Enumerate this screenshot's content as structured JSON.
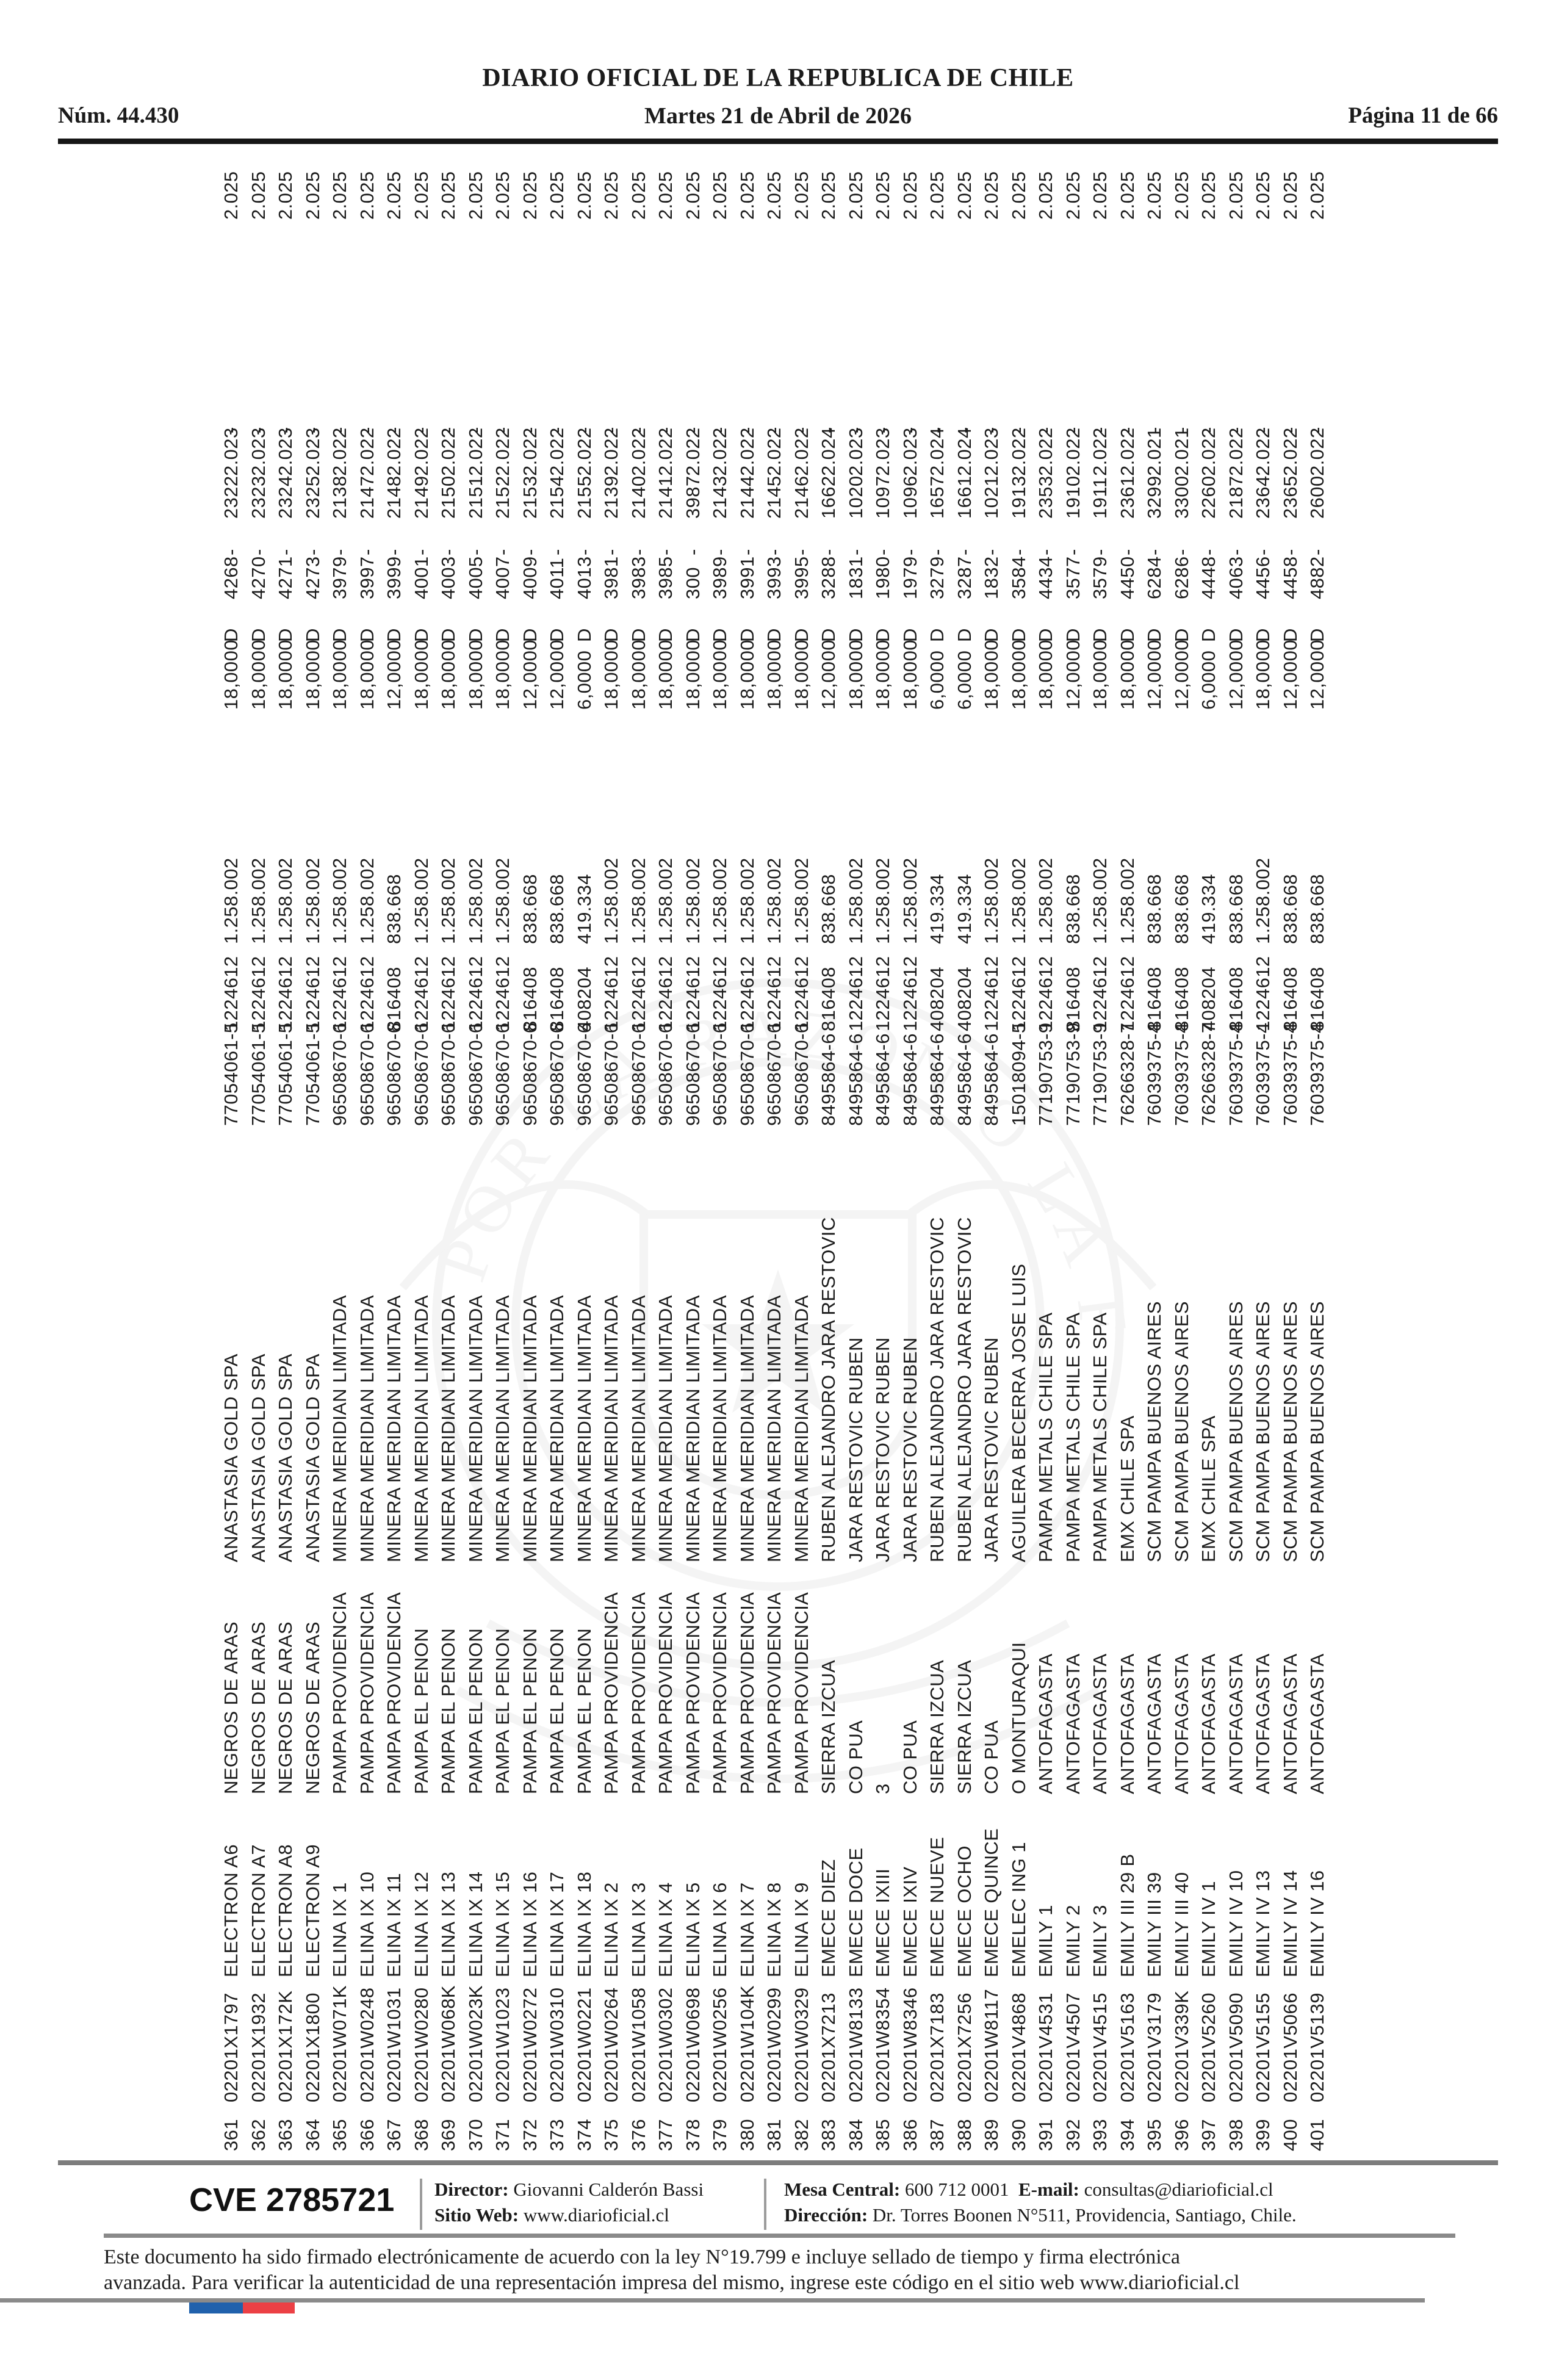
{
  "header": {
    "issue": "Núm. 44.430",
    "title": "DIARIO OFICIAL DE LA REPUBLICA DE CHILE",
    "date": "Martes 21 de Abril de 2026",
    "page": "Página 11 de 66"
  },
  "table": {
    "columns": [
      "numero",
      "rol",
      "nombre",
      "ubicacion",
      "titular",
      "rut",
      "patente",
      "valor",
      "superficie",
      "estado",
      "fojas",
      "dash1",
      "numero2",
      "anio",
      "dash2",
      "anio2"
    ],
    "rows": [
      [
        "361",
        "02201X1797",
        "ELECTRON A6",
        "NEGROS DE ARAS",
        "ANASTASIA GOLD SPA",
        "77054061-5",
        "1224612",
        "1.258.002",
        "18,0000",
        "D",
        "4268",
        "-",
        "2322",
        "2.023",
        "-",
        "2.025"
      ],
      [
        "362",
        "02201X1932",
        "ELECTRON A7",
        "NEGROS DE ARAS",
        "ANASTASIA GOLD SPA",
        "77054061-5",
        "1224612",
        "1.258.002",
        "18,0000",
        "D",
        "4270",
        "-",
        "2323",
        "2.023",
        "-",
        "2.025"
      ],
      [
        "363",
        "02201X172K",
        "ELECTRON A8",
        "NEGROS DE ARAS",
        "ANASTASIA GOLD SPA",
        "77054061-5",
        "1224612",
        "1.258.002",
        "18,0000",
        "D",
        "4271",
        "-",
        "2324",
        "2.023",
        "-",
        "2.025"
      ],
      [
        "364",
        "02201X1800",
        "ELECTRON A9",
        "NEGROS DE ARAS",
        "ANASTASIA GOLD SPA",
        "77054061-5",
        "1224612",
        "1.258.002",
        "18,0000",
        "D",
        "4273",
        "-",
        "2325",
        "2.023",
        "-",
        "2.025"
      ],
      [
        "365",
        "02201W071K",
        "ELINA IX 1",
        "PAMPA PROVIDENCIA",
        "MINERA MERIDIAN LIMITADA",
        "96508670-6",
        "1224612",
        "1.258.002",
        "18,0000",
        "D",
        "3979",
        "-",
        "2138",
        "2.022",
        "-",
        "2.025"
      ],
      [
        "366",
        "02201W0248",
        "ELINA IX 10",
        "PAMPA PROVIDENCIA",
        "MINERA MERIDIAN LIMITADA",
        "96508670-6",
        "1224612",
        "1.258.002",
        "18,0000",
        "D",
        "3997",
        "-",
        "2147",
        "2.022",
        "-",
        "2.025"
      ],
      [
        "367",
        "02201W1031",
        "ELINA IX 11",
        "PAMPA PROVIDENCIA",
        "MINERA MERIDIAN LIMITADA",
        "96508670-6",
        "816408",
        "838.668",
        "12,0000",
        "D",
        "3999",
        "-",
        "2148",
        "2.022",
        "-",
        "2.025"
      ],
      [
        "368",
        "02201W0280",
        "ELINA IX 12",
        "PAMPA EL PENON",
        "MINERA MERIDIAN LIMITADA",
        "96508670-6",
        "1224612",
        "1.258.002",
        "18,0000",
        "D",
        "4001",
        "-",
        "2149",
        "2.022",
        "-",
        "2.025"
      ],
      [
        "369",
        "02201W068K",
        "ELINA IX 13",
        "PAMPA EL PENON",
        "MINERA MERIDIAN LIMITADA",
        "96508670-6",
        "1224612",
        "1.258.002",
        "18,0000",
        "D",
        "4003",
        "-",
        "2150",
        "2.022",
        "-",
        "2.025"
      ],
      [
        "370",
        "02201W023K",
        "ELINA IX 14",
        "PAMPA EL PENON",
        "MINERA MERIDIAN LIMITADA",
        "96508670-6",
        "1224612",
        "1.258.002",
        "18,0000",
        "D",
        "4005",
        "-",
        "2151",
        "2.022",
        "-",
        "2.025"
      ],
      [
        "371",
        "02201W1023",
        "ELINA IX 15",
        "PAMPA EL PENON",
        "MINERA MERIDIAN LIMITADA",
        "96508670-6",
        "1224612",
        "1.258.002",
        "18,0000",
        "D",
        "4007",
        "-",
        "2152",
        "2.022",
        "-",
        "2.025"
      ],
      [
        "372",
        "02201W0272",
        "ELINA IX 16",
        "PAMPA EL PENON",
        "MINERA MERIDIAN LIMITADA",
        "96508670-6",
        "816408",
        "838.668",
        "12,0000",
        "D",
        "4009",
        "-",
        "2153",
        "2.022",
        "-",
        "2.025"
      ],
      [
        "373",
        "02201W0310",
        "ELINA IX 17",
        "PAMPA EL PENON",
        "MINERA MERIDIAN LIMITADA",
        "96508670-6",
        "816408",
        "838.668",
        "12,0000",
        "D",
        "4011",
        "-",
        "2154",
        "2.022",
        "-",
        "2.025"
      ],
      [
        "374",
        "02201W0221",
        "ELINA IX 18",
        "PAMPA EL PENON",
        "MINERA MERIDIAN LIMITADA",
        "96508670-6",
        "408204",
        "419.334",
        "6,0000",
        "D",
        "4013",
        "-",
        "2155",
        "2.022",
        "-",
        "2.025"
      ],
      [
        "375",
        "02201W0264",
        "ELINA IX 2",
        "PAMPA PROVIDENCIA",
        "MINERA MERIDIAN LIMITADA",
        "96508670-6",
        "1224612",
        "1.258.002",
        "18,0000",
        "D",
        "3981",
        "-",
        "2139",
        "2.022",
        "-",
        "2.025"
      ],
      [
        "376",
        "02201W1058",
        "ELINA IX 3",
        "PAMPA PROVIDENCIA",
        "MINERA MERIDIAN LIMITADA",
        "96508670-6",
        "1224612",
        "1.258.002",
        "18,0000",
        "D",
        "3983",
        "-",
        "2140",
        "2.022",
        "-",
        "2.025"
      ],
      [
        "377",
        "02201W0302",
        "ELINA IX 4",
        "PAMPA PROVIDENCIA",
        "MINERA MERIDIAN LIMITADA",
        "96508670-6",
        "1224612",
        "1.258.002",
        "18,0000",
        "D",
        "3985",
        "-",
        "2141",
        "2.022",
        "-",
        "2.025"
      ],
      [
        "378",
        "02201W0698",
        "ELINA IX 5",
        "PAMPA PROVIDENCIA",
        "MINERA MERIDIAN LIMITADA",
        "96508670-6",
        "1224612",
        "1.258.002",
        "18,0000",
        "D",
        "300",
        "-",
        "3987",
        "2.022",
        "-",
        "2.025"
      ],
      [
        "379",
        "02201W0256",
        "ELINA IX 6",
        "PAMPA PROVIDENCIA",
        "MINERA MERIDIAN LIMITADA",
        "96508670-6",
        "1224612",
        "1.258.002",
        "18,0000",
        "D",
        "3989",
        "-",
        "2143",
        "2.022",
        "-",
        "2.025"
      ],
      [
        "380",
        "02201W104K",
        "ELINA IX 7",
        "PAMPA PROVIDENCIA",
        "MINERA MERIDIAN LIMITADA",
        "96508670-6",
        "1224612",
        "1.258.002",
        "18,0000",
        "D",
        "3991",
        "-",
        "2144",
        "2.022",
        "-",
        "2.025"
      ],
      [
        "381",
        "02201W0299",
        "ELINA IX 8",
        "PAMPA PROVIDENCIA",
        "MINERA MERIDIAN LIMITADA",
        "96508670-6",
        "1224612",
        "1.258.002",
        "18,0000",
        "D",
        "3993",
        "-",
        "2145",
        "2.022",
        "-",
        "2.025"
      ],
      [
        "382",
        "02201W0329",
        "ELINA IX 9",
        "PAMPA PROVIDENCIA",
        "MINERA MERIDIAN LIMITADA",
        "96508670-6",
        "1224612",
        "1.258.002",
        "18,0000",
        "D",
        "3995",
        "-",
        "2146",
        "2.022",
        "-",
        "2.025"
      ],
      [
        "383",
        "02201X7213",
        "EMECE DIEZ",
        "SIERRA IZCUA",
        "RUBEN ALEJANDRO JARA RESTOVIC",
        "8495864-6",
        "816408",
        "838.668",
        "12,0000",
        "D",
        "3288",
        "-",
        "1662",
        "2.024",
        "-",
        "2.025"
      ],
      [
        "384",
        "02201W8133",
        "EMECE DOCE",
        "CO PUA",
        "JARA RESTOVIC RUBEN",
        "8495864-6",
        "1224612",
        "1.258.002",
        "18,0000",
        "D",
        "1831",
        "-",
        "1020",
        "2.023",
        "-",
        "2.025"
      ],
      [
        "385",
        "02201W8354",
        "EMECE IXIII",
        "3",
        "JARA RESTOVIC RUBEN",
        "8495864-6",
        "1224612",
        "1.258.002",
        "18,0000",
        "D",
        "1980",
        "-",
        "1097",
        "2.023",
        "-",
        "2.025"
      ],
      [
        "386",
        "02201W8346",
        "EMECE IXIV",
        "CO PUA",
        "JARA RESTOVIC RUBEN",
        "8495864-6",
        "1224612",
        "1.258.002",
        "18,0000",
        "D",
        "1979",
        "-",
        "1096",
        "2.023",
        "-",
        "2.025"
      ],
      [
        "387",
        "02201X7183",
        "EMECE NUEVE",
        "SIERRA IZCUA",
        "RUBEN ALEJANDRO JARA RESTOVIC",
        "8495864-6",
        "408204",
        "419.334",
        "6,0000",
        "D",
        "3279",
        "-",
        "1657",
        "2.024",
        "-",
        "2.025"
      ],
      [
        "388",
        "02201X7256",
        "EMECE OCHO",
        "SIERRA IZCUA",
        "RUBEN ALEJANDRO JARA RESTOVIC",
        "8495864-6",
        "408204",
        "419.334",
        "6,0000",
        "D",
        "3287",
        "-",
        "1661",
        "2.024",
        "-",
        "2.025"
      ],
      [
        "389",
        "02201W8117",
        "EMECE QUINCE",
        "CO PUA",
        "JARA RESTOVIC RUBEN",
        "8495864-6",
        "1224612",
        "1.258.002",
        "18,0000",
        "D",
        "1832",
        "-",
        "1021",
        "2.023",
        "-",
        "2.025"
      ],
      [
        "390",
        "02201V4868",
        "EMELEC ING 1",
        "O MONTURAQUI",
        "AGUILERA BECERRA JOSE LUIS",
        "15018094-5",
        "1224612",
        "1.258.002",
        "18,0000",
        "D",
        "3584",
        "-",
        "1913",
        "2.022",
        "-",
        "2.025"
      ],
      [
        "391",
        "02201V4531",
        "EMILY 1",
        "ANTOFAGASTA",
        "PAMPA METALS CHILE SPA",
        "77190753-9",
        "1224612",
        "1.258.002",
        "18,0000",
        "D",
        "4434",
        "-",
        "2353",
        "2.022",
        "-",
        "2.025"
      ],
      [
        "392",
        "02201V4507",
        "EMILY 2",
        "ANTOFAGASTA",
        "PAMPA METALS CHILE SPA",
        "77190753-9",
        "816408",
        "838.668",
        "12,0000",
        "D",
        "3577",
        "-",
        "1910",
        "2.022",
        "-",
        "2.025"
      ],
      [
        "393",
        "02201V4515",
        "EMILY 3",
        "ANTOFAGASTA",
        "PAMPA METALS CHILE SPA",
        "77190753-9",
        "1224612",
        "1.258.002",
        "18,0000",
        "D",
        "3579",
        "-",
        "1911",
        "2.022",
        "-",
        "2.025"
      ],
      [
        "394",
        "02201V5163",
        "EMILY III 29 B",
        "ANTOFAGASTA",
        "EMX CHILE SPA",
        "76266328-7",
        "1224612",
        "1.258.002",
        "18,0000",
        "D",
        "4450",
        "-",
        "2361",
        "2.022",
        "-",
        "2.025"
      ],
      [
        "395",
        "02201V3179",
        "EMILY III 39",
        "ANTOFAGASTA",
        "SCM PAMPA BUENOS AIRES",
        "76039375-4",
        "816408",
        "838.668",
        "12,0000",
        "D",
        "6284",
        "-",
        "3299",
        "2.021",
        "-",
        "2.025"
      ],
      [
        "396",
        "02201V339K",
        "EMILY III 40",
        "ANTOFAGASTA",
        "SCM PAMPA BUENOS AIRES",
        "76039375-4",
        "816408",
        "838.668",
        "12,0000",
        "D",
        "6286",
        "-",
        "3300",
        "2.021",
        "-",
        "2.025"
      ],
      [
        "397",
        "02201V5260",
        "EMILY IV 1",
        "ANTOFAGASTA",
        "EMX CHILE SPA",
        "76266328-7",
        "408204",
        "419.334",
        "6,0000",
        "D",
        "4448",
        "-",
        "2260",
        "2.022",
        "-",
        "2.025"
      ],
      [
        "398",
        "02201V5090",
        "EMILY IV 10",
        "ANTOFAGASTA",
        "SCM PAMPA BUENOS AIRES",
        "76039375-4",
        "816408",
        "838.668",
        "12,0000",
        "D",
        "4063",
        "-",
        "2187",
        "2.022",
        "-",
        "2.025"
      ],
      [
        "399",
        "02201V5155",
        "EMILY IV 13",
        "ANTOFAGASTA",
        "SCM PAMPA BUENOS AIRES",
        "76039375-4",
        "1224612",
        "1.258.002",
        "18,0000",
        "D",
        "4456",
        "-",
        "2364",
        "2.022",
        "-",
        "2.025"
      ],
      [
        "400",
        "02201V5066",
        "EMILY IV 14",
        "ANTOFAGASTA",
        "SCM PAMPA BUENOS AIRES",
        "76039375-4",
        "816408",
        "838.668",
        "12,0000",
        "D",
        "4458",
        "-",
        "2365",
        "2.022",
        "-",
        "2.025"
      ],
      [
        "401",
        "02201V5139",
        "EMILY IV 16",
        "ANTOFAGASTA",
        "SCM PAMPA BUENOS AIRES",
        "76039375-4",
        "816408",
        "838.668",
        "12,0000",
        "D",
        "4882",
        "-",
        "2600",
        "2.022",
        "-",
        "2.025"
      ]
    ]
  },
  "footer": {
    "cve": "CVE 2785721",
    "director_label": "Director:",
    "director": "Giovanni Calderón Bassi",
    "sitio_label": "Sitio Web:",
    "sitio": "www.diarioficial.cl",
    "mesa_label": "Mesa Central:",
    "mesa": "600 712 0001",
    "email_label": "E-mail:",
    "email": "consultas@diarioficial.cl",
    "direccion_label": "Dirección:",
    "direccion": "Dr. Torres Boonen N°511, Providencia, Santiago, Chile.",
    "legal_line1": "Este documento ha sido firmado electrónicamente de acuerdo con la ley N°19.799 e incluye sellado de tiempo y firma electrónica",
    "legal_line2": "avanzada. Para verificar la autenticidad de una representación impresa del mismo, ingrese este código en el sitio web www.diarioficial.cl"
  },
  "flag_colors": {
    "blue": "#2061ac",
    "red": "#ec4045"
  }
}
